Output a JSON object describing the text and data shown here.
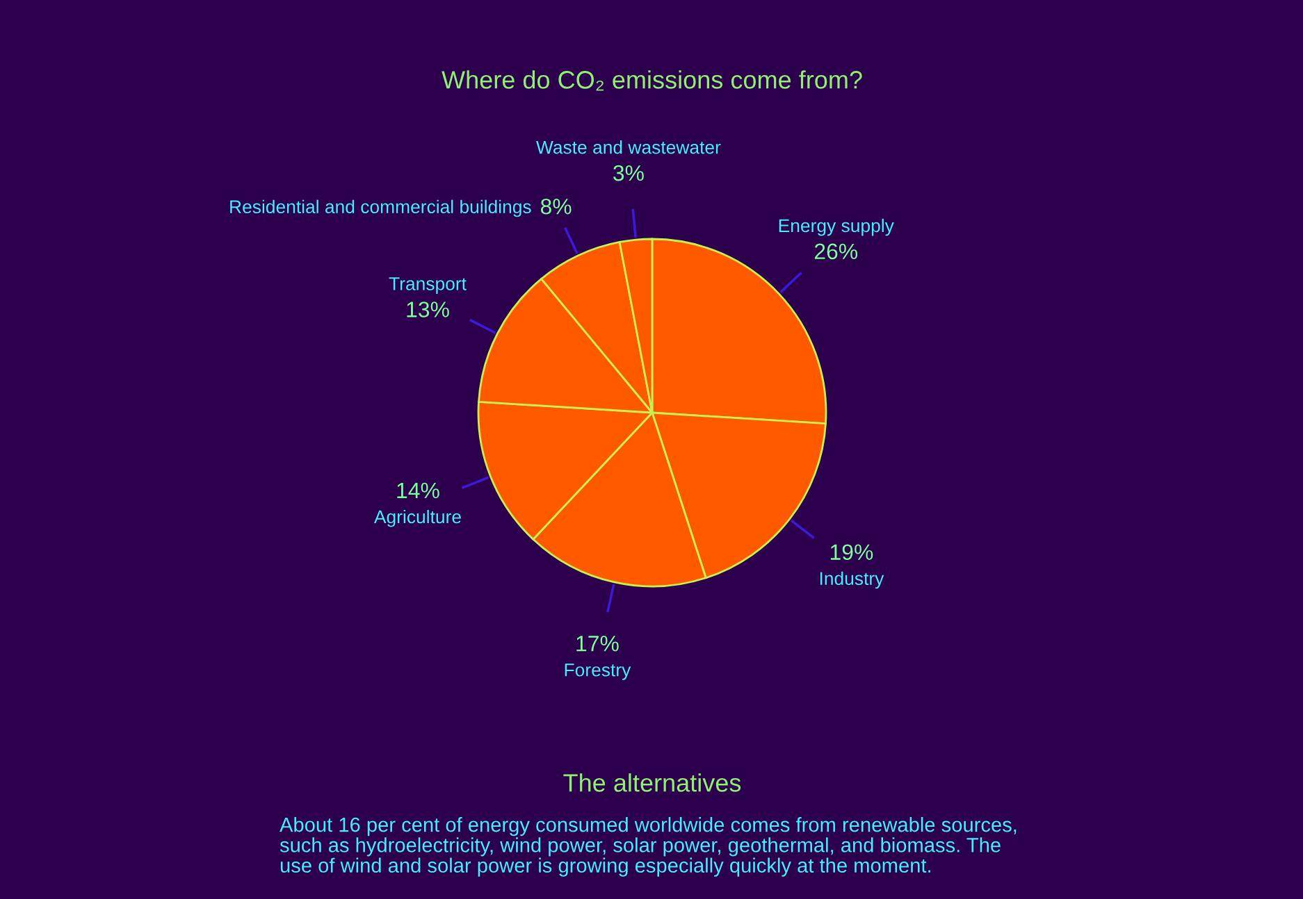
{
  "chart_data": {
    "type": "pie",
    "title": "Where do CO₂ emissions come from?",
    "categories": [
      "Energy supply",
      "Industry",
      "Forestry",
      "Agriculture",
      "Transport",
      "Residential and commercial buildings",
      "Waste and wastewater"
    ],
    "values": [
      26,
      19,
      17,
      14,
      13,
      8,
      3
    ],
    "colors": [
      "#ff5a00",
      "#ff5a00",
      "#ff5a00",
      "#ff5a00",
      "#ff5a00",
      "#ff5a00",
      "#ff5a00"
    ],
    "value_labels": [
      "26%",
      "19%",
      "17%",
      "14%",
      "13%",
      "8%",
      "3%"
    ],
    "annotations": [
      "The alternatives",
      "About 16 per cent of energy consumed worldwide comes from renewable sources, such as hydroelectricity, wind power, solar power, geothermal, and biomass. The use of wind and solar power is growing especially quickly at the moment."
    ]
  }
}
